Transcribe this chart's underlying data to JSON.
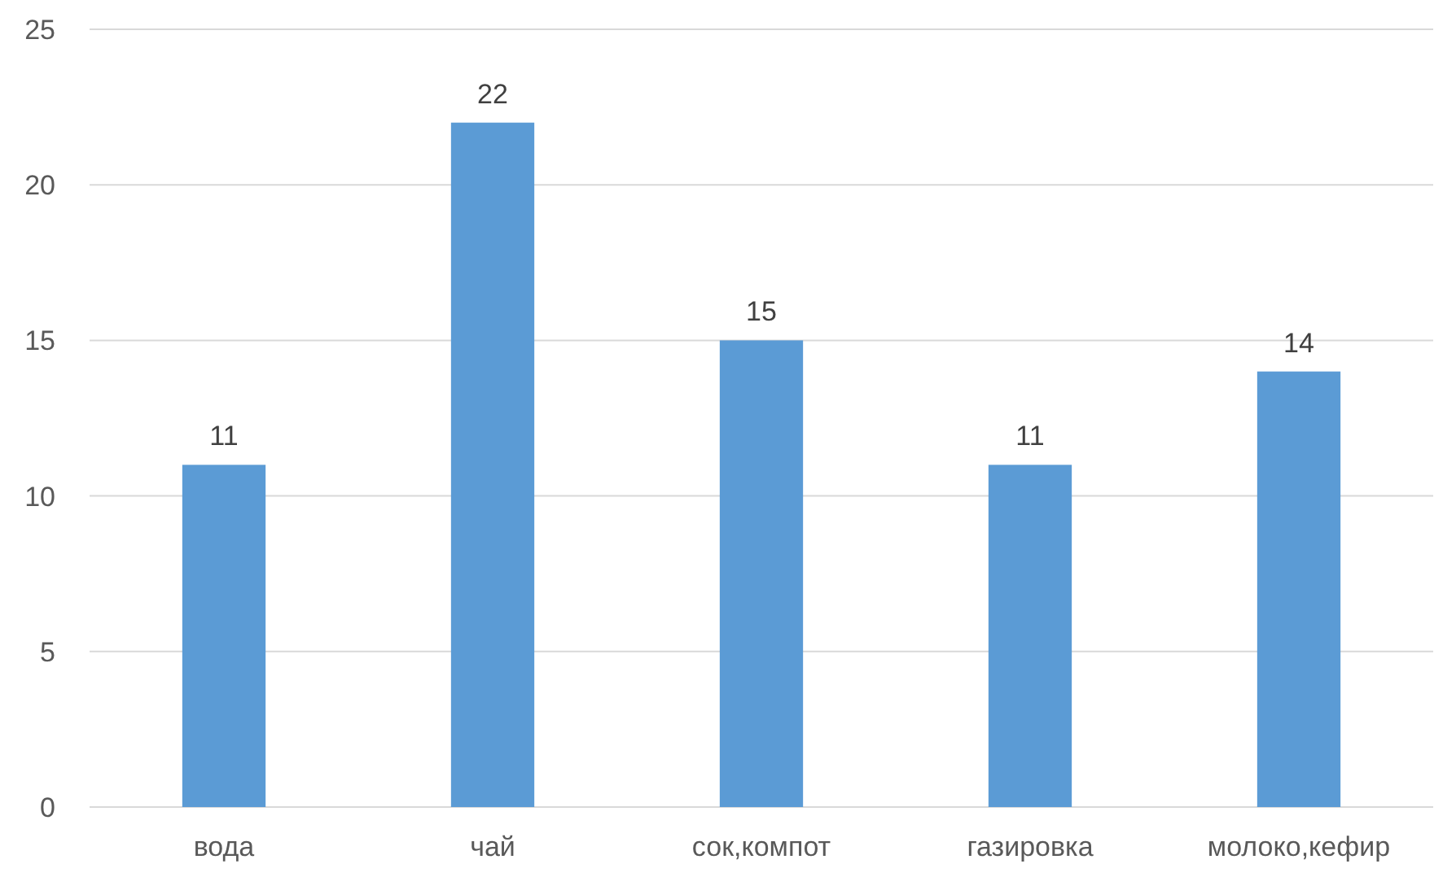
{
  "chart_data": {
    "type": "bar",
    "categories": [
      "вода",
      "чай",
      "сок,компот",
      "газировка",
      "молоко,кефир"
    ],
    "values": [
      11,
      22,
      15,
      11,
      14
    ],
    "color": "#5b9bd5",
    "ylim": [
      0,
      25
    ],
    "yticks": [
      0,
      5,
      10,
      15,
      20,
      25
    ],
    "grid": "y",
    "data_labels": true
  }
}
